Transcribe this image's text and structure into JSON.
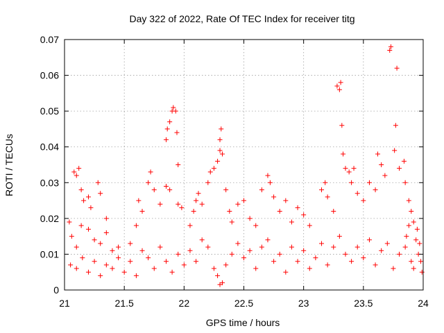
{
  "chart_data": {
    "type": "scatter",
    "title": "Day 322 of 2022, Rate Of TEC Index for receiver titg",
    "xlabel": "GPS time / hours",
    "ylabel": "ROTI / TECUs",
    "xlim": [
      21,
      24
    ],
    "ylim": [
      0,
      0.07
    ],
    "x_ticks": [
      21,
      21.5,
      22,
      22.5,
      23,
      23.5,
      24
    ],
    "x_tick_labels": [
      "21",
      "21.5",
      "22",
      "22.5",
      "23",
      "23.5",
      "24"
    ],
    "y_ticks": [
      0,
      0.01,
      0.02,
      0.03,
      0.04,
      0.05,
      0.06,
      0.07
    ],
    "y_tick_labels": [
      "0",
      "0.01",
      "0.02",
      "0.03",
      "0.04",
      "0.05",
      "0.06",
      "0.07"
    ],
    "grid": true,
    "marker": "plus",
    "color": "#ff0000",
    "series": [
      {
        "name": "ROTI",
        "points": [
          [
            21.08,
            0.033
          ],
          [
            21.1,
            0.032
          ],
          [
            21.12,
            0.034
          ],
          [
            21.14,
            0.028
          ],
          [
            21.16,
            0.025
          ],
          [
            21.2,
            0.026
          ],
          [
            21.22,
            0.023
          ],
          [
            21.28,
            0.03
          ],
          [
            21.3,
            0.027
          ],
          [
            21.35,
            0.02
          ],
          [
            21.04,
            0.019
          ],
          [
            21.06,
            0.015
          ],
          [
            21.1,
            0.012
          ],
          [
            21.14,
            0.018
          ],
          [
            21.2,
            0.017
          ],
          [
            21.25,
            0.014
          ],
          [
            21.3,
            0.013
          ],
          [
            21.35,
            0.016
          ],
          [
            21.4,
            0.011
          ],
          [
            21.45,
            0.012
          ],
          [
            21.05,
            0.007
          ],
          [
            21.1,
            0.006
          ],
          [
            21.15,
            0.009
          ],
          [
            21.2,
            0.005
          ],
          [
            21.25,
            0.008
          ],
          [
            21.3,
            0.004
          ],
          [
            21.35,
            0.007
          ],
          [
            21.4,
            0.006
          ],
          [
            21.45,
            0.009
          ],
          [
            21.5,
            0.005
          ],
          [
            21.55,
            0.013
          ],
          [
            21.6,
            0.018
          ],
          [
            21.62,
            0.025
          ],
          [
            21.65,
            0.022
          ],
          [
            21.7,
            0.03
          ],
          [
            21.72,
            0.033
          ],
          [
            21.75,
            0.028
          ],
          [
            21.8,
            0.024
          ],
          [
            21.85,
            0.029
          ],
          [
            21.88,
            0.028
          ],
          [
            21.85,
            0.042
          ],
          [
            21.86,
            0.045
          ],
          [
            21.88,
            0.047
          ],
          [
            21.9,
            0.05
          ],
          [
            21.91,
            0.051
          ],
          [
            21.93,
            0.05
          ],
          [
            21.94,
            0.044
          ],
          [
            21.95,
            0.035
          ],
          [
            21.95,
            0.024
          ],
          [
            21.98,
            0.023
          ],
          [
            21.55,
            0.008
          ],
          [
            21.6,
            0.004
          ],
          [
            21.65,
            0.011
          ],
          [
            21.7,
            0.009
          ],
          [
            21.75,
            0.006
          ],
          [
            21.8,
            0.012
          ],
          [
            21.85,
            0.008
          ],
          [
            21.9,
            0.005
          ],
          [
            21.95,
            0.01
          ],
          [
            22.0,
            0.007
          ],
          [
            22.05,
            0.018
          ],
          [
            22.08,
            0.022
          ],
          [
            22.1,
            0.025
          ],
          [
            22.12,
            0.027
          ],
          [
            22.15,
            0.024
          ],
          [
            22.2,
            0.03
          ],
          [
            22.22,
            0.033
          ],
          [
            22.25,
            0.034
          ],
          [
            22.28,
            0.036
          ],
          [
            22.3,
            0.039
          ],
          [
            22.3,
            0.042
          ],
          [
            22.31,
            0.045
          ],
          [
            22.32,
            0.038
          ],
          [
            22.35,
            0.028
          ],
          [
            22.38,
            0.022
          ],
          [
            22.4,
            0.019
          ],
          [
            22.45,
            0.024
          ],
          [
            22.5,
            0.025
          ],
          [
            22.55,
            0.02
          ],
          [
            22.6,
            0.018
          ],
          [
            22.05,
            0.011
          ],
          [
            22.1,
            0.008
          ],
          [
            22.15,
            0.014
          ],
          [
            22.2,
            0.012
          ],
          [
            22.25,
            0.006
          ],
          [
            22.28,
            0.004
          ],
          [
            22.3,
            0.0015
          ],
          [
            22.32,
            0.002
          ],
          [
            22.35,
            0.007
          ],
          [
            22.4,
            0.01
          ],
          [
            22.45,
            0.013
          ],
          [
            22.5,
            0.009
          ],
          [
            22.55,
            0.011
          ],
          [
            22.6,
            0.006
          ],
          [
            22.65,
            0.012
          ],
          [
            22.7,
            0.014
          ],
          [
            22.75,
            0.008
          ],
          [
            22.8,
            0.01
          ],
          [
            22.85,
            0.005
          ],
          [
            22.9,
            0.012
          ],
          [
            22.65,
            0.028
          ],
          [
            22.7,
            0.032
          ],
          [
            22.72,
            0.03
          ],
          [
            22.75,
            0.026
          ],
          [
            22.8,
            0.022
          ],
          [
            22.85,
            0.025
          ],
          [
            22.9,
            0.019
          ],
          [
            22.95,
            0.023
          ],
          [
            23.0,
            0.021
          ],
          [
            23.05,
            0.018
          ],
          [
            22.95,
            0.008
          ],
          [
            23.0,
            0.011
          ],
          [
            23.05,
            0.006
          ],
          [
            23.1,
            0.009
          ],
          [
            23.15,
            0.013
          ],
          [
            23.2,
            0.007
          ],
          [
            23.25,
            0.012
          ],
          [
            23.3,
            0.015
          ],
          [
            23.35,
            0.01
          ],
          [
            23.4,
            0.008
          ],
          [
            23.15,
            0.028
          ],
          [
            23.18,
            0.03
          ],
          [
            23.2,
            0.026
          ],
          [
            23.25,
            0.022
          ],
          [
            23.28,
            0.057
          ],
          [
            23.3,
            0.056
          ],
          [
            23.31,
            0.058
          ],
          [
            23.32,
            0.046
          ],
          [
            23.33,
            0.038
          ],
          [
            23.35,
            0.034
          ],
          [
            23.38,
            0.033
          ],
          [
            23.4,
            0.03
          ],
          [
            23.42,
            0.034
          ],
          [
            23.45,
            0.027
          ],
          [
            23.5,
            0.025
          ],
          [
            23.55,
            0.03
          ],
          [
            23.6,
            0.028
          ],
          [
            23.62,
            0.038
          ],
          [
            23.65,
            0.035
          ],
          [
            23.68,
            0.032
          ],
          [
            23.72,
            0.067
          ],
          [
            23.73,
            0.068
          ],
          [
            23.78,
            0.062
          ],
          [
            23.77,
            0.046
          ],
          [
            23.76,
            0.039
          ],
          [
            23.8,
            0.034
          ],
          [
            23.84,
            0.036
          ],
          [
            23.85,
            0.03
          ],
          [
            23.88,
            0.025
          ],
          [
            23.9,
            0.022
          ],
          [
            23.45,
            0.012
          ],
          [
            23.5,
            0.009
          ],
          [
            23.55,
            0.014
          ],
          [
            23.6,
            0.007
          ],
          [
            23.65,
            0.011
          ],
          [
            23.7,
            0.013
          ],
          [
            23.75,
            0.006
          ],
          [
            23.8,
            0.01
          ],
          [
            23.85,
            0.012
          ],
          [
            23.9,
            0.008
          ],
          [
            23.92,
            0.019
          ],
          [
            23.95,
            0.017
          ],
          [
            23.97,
            0.013
          ],
          [
            23.98,
            0.008
          ],
          [
            23.99,
            0.005
          ],
          [
            23.96,
            0.01
          ],
          [
            23.94,
            0.014
          ],
          [
            23.92,
            0.006
          ],
          [
            23.88,
            0.018
          ],
          [
            23.86,
            0.015
          ]
        ]
      }
    ]
  }
}
